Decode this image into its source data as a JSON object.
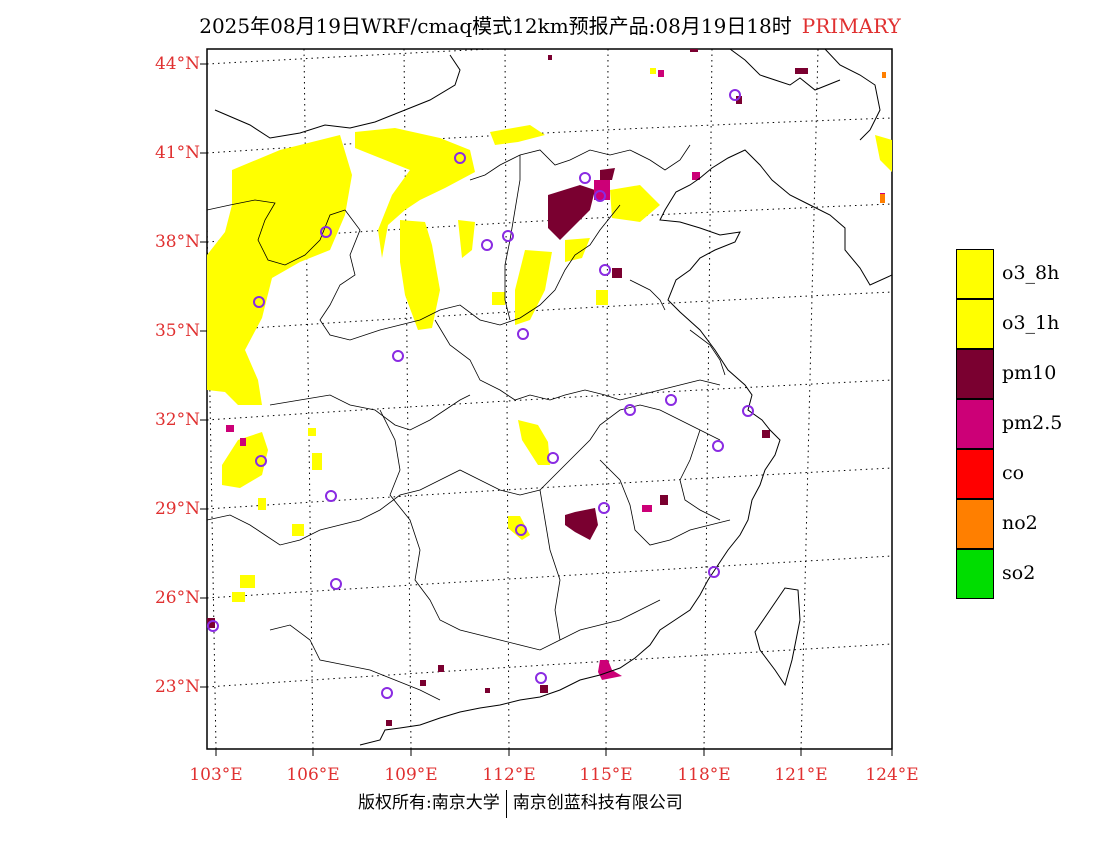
{
  "title": {
    "main": "2025年08月19日WRF/cmaq模式12km预报产品:08月19日18时",
    "highlight": "PRIMARY",
    "highlight_color": "#e03030"
  },
  "map": {
    "lat_labels": [
      "44°N",
      "41°N",
      "38°N",
      "35°N",
      "32°N",
      "29°N",
      "26°N",
      "23°N"
    ],
    "lon_labels": [
      "103°E",
      "106°E",
      "109°E",
      "112°E",
      "115°E",
      "118°E",
      "121°E",
      "124°E"
    ],
    "label_color": "#e03030",
    "station_marker_color": "#8a2be2"
  },
  "legend": [
    {
      "label": "o3_8h",
      "color": "#ffff00"
    },
    {
      "label": "o3_1h",
      "color": "#ffff00"
    },
    {
      "label": "pm10",
      "color": "#7a0030"
    },
    {
      "label": "pm2.5",
      "color": "#cc0077"
    },
    {
      "label": "co",
      "color": "#ff0000"
    },
    {
      "label": "no2",
      "color": "#ff7f00"
    },
    {
      "label": "so2",
      "color": "#00dd00"
    }
  ],
  "footer": {
    "left": "版权所有:南京大学",
    "right": "南京创蓝科技有限公司"
  }
}
